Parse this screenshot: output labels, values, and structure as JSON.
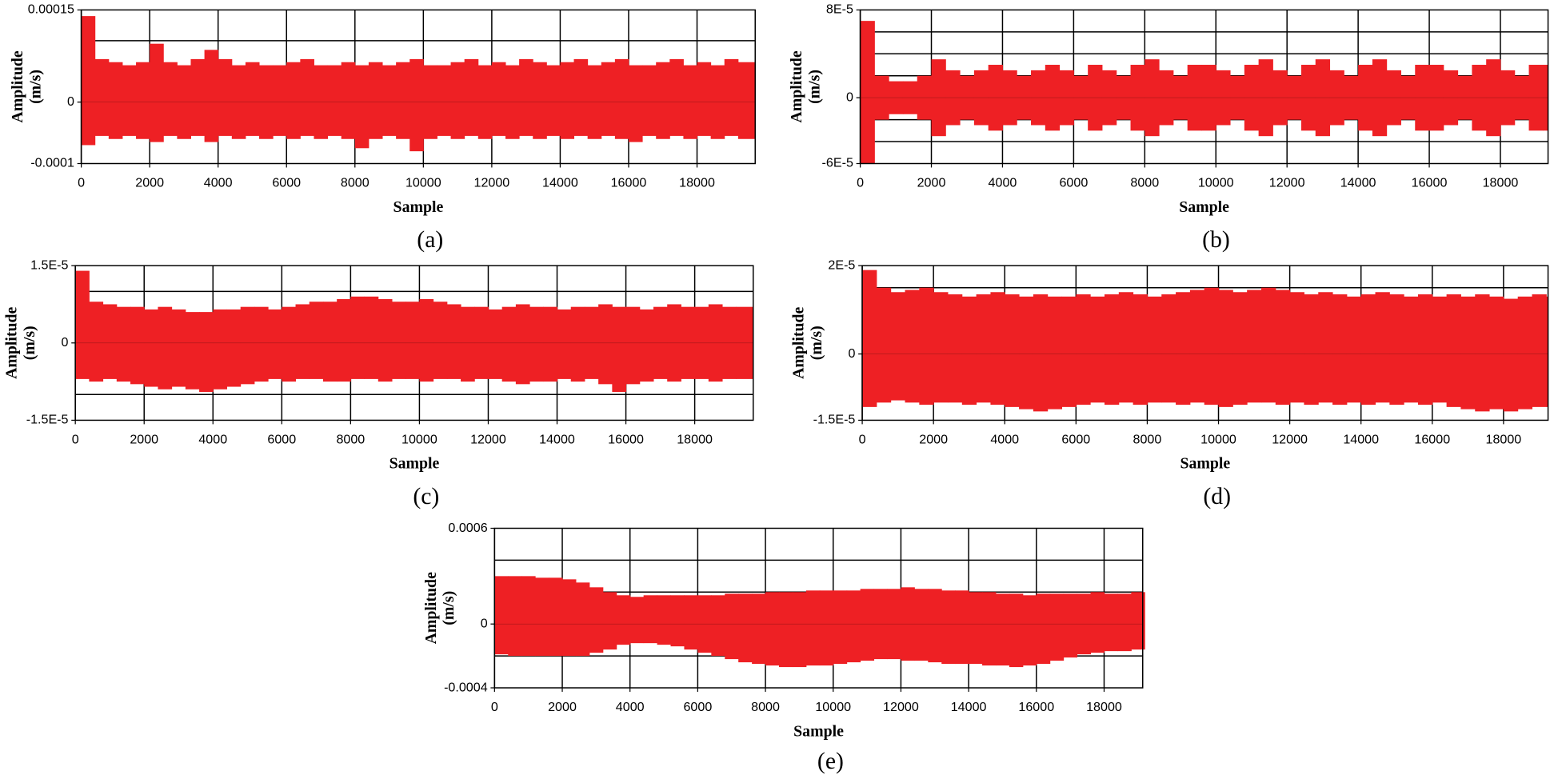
{
  "chart_data": [
    {
      "type": "range",
      "caption": "(a)",
      "xlabel": "Sample",
      "ylabel": [
        "Amplitude",
        "(m/s)"
      ],
      "xlim": [
        0,
        19700
      ],
      "xticks": [
        0,
        2000,
        4000,
        6000,
        8000,
        10000,
        12000,
        14000,
        16000,
        18000
      ],
      "ylim": [
        -0.0001,
        0.00015
      ],
      "yticks": [
        0.00015,
        0,
        -0.0001
      ],
      "ygrid": [
        0.0001,
        5e-05,
        -5e-05
      ],
      "grid": true,
      "x": [
        0,
        400,
        800,
        1200,
        1600,
        2000,
        2400,
        2800,
        3200,
        3600,
        4000,
        4400,
        4800,
        5200,
        5600,
        6000,
        6400,
        6800,
        7200,
        7600,
        8000,
        8400,
        8800,
        9200,
        9600,
        10000,
        10400,
        10800,
        11200,
        11600,
        12000,
        12400,
        12800,
        13200,
        13600,
        14000,
        14400,
        14800,
        15200,
        15600,
        16000,
        16400,
        16800,
        17200,
        17600,
        18000,
        18400,
        18800,
        19200
      ],
      "series": [
        {
          "color": "#ee2024",
          "values": [
            0.00014,
            7e-05,
            6.5e-05,
            6e-05,
            6.5e-05,
            9.5e-05,
            6.5e-05,
            6e-05,
            7e-05,
            8.5e-05,
            7e-05,
            6e-05,
            6.5e-05,
            6e-05,
            6e-05,
            6.5e-05,
            7e-05,
            6e-05,
            6e-05,
            6.5e-05,
            6e-05,
            6.5e-05,
            6e-05,
            6.5e-05,
            7e-05,
            6e-05,
            6e-05,
            6.5e-05,
            7e-05,
            6e-05,
            6.5e-05,
            6e-05,
            7e-05,
            6.5e-05,
            6e-05,
            6.5e-05,
            7e-05,
            6e-05,
            6.5e-05,
            7e-05,
            6e-05,
            6e-05,
            6.5e-05,
            7e-05,
            6e-05,
            6.5e-05,
            6e-05,
            7e-05,
            6.5e-05
          ]
        },
        {
          "color": "#ee2024",
          "values": [
            -7e-05,
            -5.5e-05,
            -6e-05,
            -5.5e-05,
            -6e-05,
            -6.5e-05,
            -5.5e-05,
            -6e-05,
            -5.5e-05,
            -6.5e-05,
            -5.5e-05,
            -6e-05,
            -5.5e-05,
            -6e-05,
            -5.5e-05,
            -6e-05,
            -5.5e-05,
            -6e-05,
            -5.5e-05,
            -6e-05,
            -7.5e-05,
            -6e-05,
            -5.5e-05,
            -6e-05,
            -8e-05,
            -6e-05,
            -5.5e-05,
            -6e-05,
            -5.5e-05,
            -6e-05,
            -5.5e-05,
            -6e-05,
            -5.5e-05,
            -6e-05,
            -5.5e-05,
            -6e-05,
            -5.5e-05,
            -6e-05,
            -5.5e-05,
            -6e-05,
            -6.5e-05,
            -5.5e-05,
            -6e-05,
            -5.5e-05,
            -6e-05,
            -5.5e-05,
            -6e-05,
            -5.5e-05,
            -6e-05
          ]
        }
      ]
    },
    {
      "type": "range",
      "caption": "(b)",
      "xlabel": "Sample",
      "ylabel": [
        "Amplitude",
        "(m/s)"
      ],
      "xlim": [
        0,
        19340
      ],
      "xticks": [
        0,
        2000,
        4000,
        6000,
        8000,
        10000,
        12000,
        14000,
        16000,
        18000
      ],
      "ylim": [
        -6e-05,
        8e-05
      ],
      "yticks": [
        {
          "value": 8e-05,
          "label": "8E-5"
        },
        0,
        {
          "value": -6e-05,
          "label": "-6E-5"
        }
      ],
      "ygrid": [
        6e-05,
        4e-05,
        2e-05,
        -2e-05,
        -4e-05
      ],
      "grid": true,
      "x": [
        0,
        400,
        800,
        1200,
        1600,
        2000,
        2400,
        2800,
        3200,
        3600,
        4000,
        4400,
        4800,
        5200,
        5600,
        6000,
        6400,
        6800,
        7200,
        7600,
        8000,
        8400,
        8800,
        9200,
        9600,
        10000,
        10400,
        10800,
        11200,
        11600,
        12000,
        12400,
        12800,
        13200,
        13600,
        14000,
        14400,
        14800,
        15200,
        15600,
        16000,
        16400,
        16800,
        17200,
        17600,
        18000,
        18400,
        18800,
        19200
      ],
      "series": [
        {
          "color": "#ee2024",
          "values": [
            7e-05,
            2e-05,
            1.5e-05,
            1.5e-05,
            2e-05,
            3.5e-05,
            2.5e-05,
            2e-05,
            2.5e-05,
            3e-05,
            2.5e-05,
            2e-05,
            2.5e-05,
            3e-05,
            2.5e-05,
            2e-05,
            3e-05,
            2.5e-05,
            2e-05,
            3e-05,
            3.5e-05,
            2.5e-05,
            2e-05,
            3e-05,
            3e-05,
            2.5e-05,
            2e-05,
            3e-05,
            3.5e-05,
            2.5e-05,
            2e-05,
            3e-05,
            3.5e-05,
            2.5e-05,
            2e-05,
            3e-05,
            3.5e-05,
            2.5e-05,
            2e-05,
            3e-05,
            3e-05,
            2.5e-05,
            2e-05,
            3e-05,
            3.5e-05,
            2.5e-05,
            2e-05,
            3e-05,
            3e-05
          ]
        },
        {
          "color": "#ee2024",
          "values": [
            -6e-05,
            -2e-05,
            -1.5e-05,
            -1.5e-05,
            -2e-05,
            -3.5e-05,
            -2.5e-05,
            -2e-05,
            -2.5e-05,
            -3e-05,
            -2.5e-05,
            -2e-05,
            -2.5e-05,
            -3e-05,
            -2.5e-05,
            -2e-05,
            -3e-05,
            -2.5e-05,
            -2e-05,
            -3e-05,
            -3.5e-05,
            -2.5e-05,
            -2e-05,
            -3e-05,
            -3e-05,
            -2.5e-05,
            -2e-05,
            -3e-05,
            -3.5e-05,
            -2.5e-05,
            -2e-05,
            -3e-05,
            -3.5e-05,
            -2.5e-05,
            -2e-05,
            -3e-05,
            -3.5e-05,
            -2.5e-05,
            -2e-05,
            -3e-05,
            -3e-05,
            -2.5e-05,
            -2e-05,
            -3e-05,
            -3.5e-05,
            -2.5e-05,
            -2e-05,
            -3e-05,
            -3e-05
          ]
        }
      ]
    },
    {
      "type": "range",
      "caption": "(c)",
      "xlabel": "Sample",
      "ylabel": [
        "Amplitude",
        "(m/s)"
      ],
      "xlim": [
        0,
        19700
      ],
      "xticks": [
        0,
        2000,
        4000,
        6000,
        8000,
        10000,
        12000,
        14000,
        16000,
        18000
      ],
      "ylim": [
        -1.5e-05,
        1.5e-05
      ],
      "yticks": [
        {
          "value": 1.5e-05,
          "label": "1.5E-5"
        },
        0,
        {
          "value": -1.5e-05,
          "label": "-1.5E-5"
        }
      ],
      "ygrid": [
        1e-05,
        5e-06,
        -5e-06,
        -1e-05
      ],
      "grid": true,
      "x": [
        0,
        400,
        800,
        1200,
        1600,
        2000,
        2400,
        2800,
        3200,
        3600,
        4000,
        4400,
        4800,
        5200,
        5600,
        6000,
        6400,
        6800,
        7200,
        7600,
        8000,
        8400,
        8800,
        9200,
        9600,
        10000,
        10400,
        10800,
        11200,
        11600,
        12000,
        12400,
        12800,
        13200,
        13600,
        14000,
        14400,
        14800,
        15200,
        15600,
        16000,
        16400,
        16800,
        17200,
        17600,
        18000,
        18400,
        18800,
        19200
      ],
      "series": [
        {
          "color": "#ee2024",
          "values": [
            1.4e-05,
            8e-06,
            7.5e-06,
            7e-06,
            7e-06,
            6.5e-06,
            7e-06,
            6.5e-06,
            6e-06,
            6e-06,
            6.5e-06,
            6.5e-06,
            7e-06,
            7e-06,
            6.5e-06,
            7e-06,
            7.5e-06,
            8e-06,
            8e-06,
            8.5e-06,
            9e-06,
            9e-06,
            8.5e-06,
            8e-06,
            8e-06,
            8.5e-06,
            8e-06,
            7.5e-06,
            7e-06,
            7e-06,
            6.5e-06,
            7e-06,
            7.5e-06,
            7e-06,
            7e-06,
            6.5e-06,
            7e-06,
            7e-06,
            7.5e-06,
            7e-06,
            7e-06,
            6.5e-06,
            7e-06,
            7.5e-06,
            7e-06,
            7e-06,
            7.5e-06,
            7e-06,
            7e-06
          ]
        },
        {
          "color": "#ee2024",
          "values": [
            -7e-06,
            -7.5e-06,
            -7e-06,
            -7.5e-06,
            -8e-06,
            -8.5e-06,
            -9e-06,
            -8.5e-06,
            -9e-06,
            -9.5e-06,
            -9e-06,
            -8.5e-06,
            -8e-06,
            -7.5e-06,
            -7e-06,
            -7.5e-06,
            -7e-06,
            -7e-06,
            -7.5e-06,
            -7.5e-06,
            -7e-06,
            -7e-06,
            -7.5e-06,
            -7e-06,
            -7e-06,
            -7.5e-06,
            -7e-06,
            -7e-06,
            -7.5e-06,
            -7e-06,
            -7e-06,
            -7.5e-06,
            -8e-06,
            -7.5e-06,
            -7.5e-06,
            -7e-06,
            -7.5e-06,
            -7e-06,
            -8e-06,
            -9.5e-06,
            -8e-06,
            -7.5e-06,
            -7e-06,
            -7.5e-06,
            -7e-06,
            -7e-06,
            -7.5e-06,
            -7e-06,
            -7e-06
          ]
        }
      ]
    },
    {
      "type": "range",
      "caption": "(d)",
      "xlabel": "Sample",
      "ylabel": [
        "Amplitude",
        "(m/s)"
      ],
      "xlim": [
        0,
        19250
      ],
      "xticks": [
        0,
        2000,
        4000,
        6000,
        8000,
        10000,
        12000,
        14000,
        16000,
        18000
      ],
      "ylim": [
        -1.5e-05,
        2e-05
      ],
      "yticks": [
        {
          "value": 2e-05,
          "label": "2E-5"
        },
        0,
        {
          "value": -1.5e-05,
          "label": "-1.5E-5"
        }
      ],
      "ygrid": [
        1.5e-05,
        1e-05,
        5e-06,
        -5e-06,
        -1e-05
      ],
      "grid": true,
      "x": [
        0,
        400,
        800,
        1200,
        1600,
        2000,
        2400,
        2800,
        3200,
        3600,
        4000,
        4400,
        4800,
        5200,
        5600,
        6000,
        6400,
        6800,
        7200,
        7600,
        8000,
        8400,
        8800,
        9200,
        9600,
        10000,
        10400,
        10800,
        11200,
        11600,
        12000,
        12400,
        12800,
        13200,
        13600,
        14000,
        14400,
        14800,
        15200,
        15600,
        16000,
        16400,
        16800,
        17200,
        17600,
        18000,
        18400,
        18800,
        19200
      ],
      "series": [
        {
          "color": "#ee2024",
          "values": [
            1.9e-05,
            1.5e-05,
            1.4e-05,
            1.45e-05,
            1.5e-05,
            1.4e-05,
            1.35e-05,
            1.3e-05,
            1.35e-05,
            1.4e-05,
            1.35e-05,
            1.3e-05,
            1.35e-05,
            1.3e-05,
            1.3e-05,
            1.35e-05,
            1.3e-05,
            1.35e-05,
            1.4e-05,
            1.35e-05,
            1.3e-05,
            1.35e-05,
            1.4e-05,
            1.45e-05,
            1.5e-05,
            1.45e-05,
            1.4e-05,
            1.45e-05,
            1.5e-05,
            1.45e-05,
            1.4e-05,
            1.35e-05,
            1.4e-05,
            1.35e-05,
            1.3e-05,
            1.35e-05,
            1.4e-05,
            1.35e-05,
            1.3e-05,
            1.35e-05,
            1.3e-05,
            1.35e-05,
            1.3e-05,
            1.35e-05,
            1.3e-05,
            1.25e-05,
            1.3e-05,
            1.35e-05,
            1.3e-05
          ]
        },
        {
          "color": "#ee2024",
          "values": [
            -1.2e-05,
            -1.1e-05,
            -1.05e-05,
            -1.1e-05,
            -1.15e-05,
            -1.1e-05,
            -1.1e-05,
            -1.15e-05,
            -1.1e-05,
            -1.15e-05,
            -1.2e-05,
            -1.25e-05,
            -1.3e-05,
            -1.25e-05,
            -1.2e-05,
            -1.15e-05,
            -1.1e-05,
            -1.15e-05,
            -1.1e-05,
            -1.15e-05,
            -1.1e-05,
            -1.1e-05,
            -1.15e-05,
            -1.1e-05,
            -1.15e-05,
            -1.2e-05,
            -1.15e-05,
            -1.1e-05,
            -1.1e-05,
            -1.15e-05,
            -1.1e-05,
            -1.15e-05,
            -1.1e-05,
            -1.15e-05,
            -1.1e-05,
            -1.15e-05,
            -1.1e-05,
            -1.15e-05,
            -1.1e-05,
            -1.15e-05,
            -1.1e-05,
            -1.2e-05,
            -1.25e-05,
            -1.3e-05,
            -1.25e-05,
            -1.3e-05,
            -1.25e-05,
            -1.2e-05,
            -1.2e-05
          ]
        }
      ]
    },
    {
      "type": "range",
      "caption": "(e)",
      "xlabel": "Sample",
      "ylabel": [
        "Amplitude",
        "(m/s)"
      ],
      "xlim": [
        0,
        19140
      ],
      "xticks": [
        0,
        2000,
        4000,
        6000,
        8000,
        10000,
        12000,
        14000,
        16000,
        18000
      ],
      "ylim": [
        -0.0004,
        0.0006
      ],
      "yticks": [
        0.0006,
        0,
        -0.0004
      ],
      "ygrid": [
        0.0004,
        0.0002,
        -0.0002
      ],
      "grid": true,
      "x": [
        0,
        400,
        800,
        1200,
        1600,
        2000,
        2400,
        2800,
        3200,
        3600,
        4000,
        4400,
        4800,
        5200,
        5600,
        6000,
        6400,
        6800,
        7200,
        7600,
        8000,
        8400,
        8800,
        9200,
        9600,
        10000,
        10400,
        10800,
        11200,
        11600,
        12000,
        12400,
        12800,
        13200,
        13600,
        14000,
        14400,
        14800,
        15200,
        15600,
        16000,
        16400,
        16800,
        17200,
        17600,
        18000,
        18400,
        18800,
        19200
      ],
      "series": [
        {
          "color": "#ee2024",
          "values": [
            0.0003,
            0.0003,
            0.0003,
            0.00029,
            0.00029,
            0.00028,
            0.00026,
            0.00023,
            0.0002,
            0.00018,
            0.00017,
            0.00018,
            0.00018,
            0.00018,
            0.00018,
            0.00018,
            0.00018,
            0.00019,
            0.00019,
            0.00019,
            0.0002,
            0.0002,
            0.0002,
            0.00021,
            0.00021,
            0.00021,
            0.00021,
            0.00022,
            0.00022,
            0.00022,
            0.00023,
            0.00022,
            0.00022,
            0.00021,
            0.00021,
            0.0002,
            0.0002,
            0.00019,
            0.00019,
            0.00018,
            0.00019,
            0.00019,
            0.00019,
            0.00019,
            0.0002,
            0.00019,
            0.00019,
            0.0002,
            0.00019
          ]
        },
        {
          "color": "#ee2024",
          "values": [
            -0.00019,
            -0.0002,
            -0.0002,
            -0.0002,
            -0.0002,
            -0.0002,
            -0.0002,
            -0.00018,
            -0.00016,
            -0.00013,
            -0.00012,
            -0.00012,
            -0.00013,
            -0.00014,
            -0.00016,
            -0.00018,
            -0.0002,
            -0.00022,
            -0.00024,
            -0.00025,
            -0.00026,
            -0.00027,
            -0.00027,
            -0.00026,
            -0.00026,
            -0.00025,
            -0.00024,
            -0.00023,
            -0.00022,
            -0.00022,
            -0.00023,
            -0.00023,
            -0.00024,
            -0.00025,
            -0.00025,
            -0.00025,
            -0.00026,
            -0.00026,
            -0.00027,
            -0.00026,
            -0.00025,
            -0.00023,
            -0.00021,
            -0.00019,
            -0.00018,
            -0.00017,
            -0.00017,
            -0.00016,
            -0.00016
          ]
        }
      ]
    }
  ]
}
